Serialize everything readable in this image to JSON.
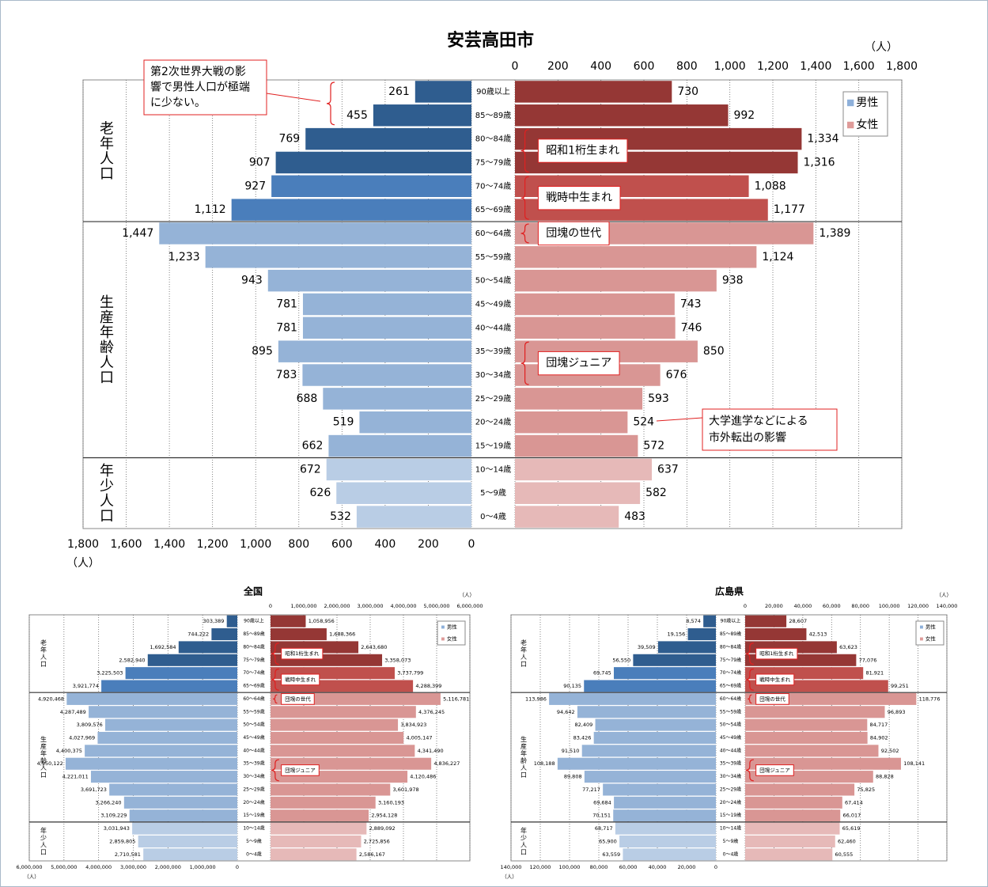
{
  "chart_data": [
    {
      "type": "pyramid",
      "title": "安芸高田市",
      "unit": "（人）",
      "categories": [
        "90歳以上",
        "85〜89歳",
        "80〜84歳",
        "75〜79歳",
        "70〜74歳",
        "65〜69歳",
        "60〜64歳",
        "55〜59歳",
        "50〜54歳",
        "45〜49歳",
        "40〜44歳",
        "35〜39歳",
        "30〜34歳",
        "25〜29歳",
        "20〜24歳",
        "15〜19歳",
        "10〜14歳",
        "5〜9歳",
        "0〜4歳"
      ],
      "series": [
        {
          "name": "男性",
          "color": "#8eb0da",
          "colors": [
            "#2f5d8f",
            "#2f5d8f",
            "#2f5d8f",
            "#2f5d8f",
            "#4a7ebb",
            "#4a7ebb",
            "#95b3d7",
            "#95b3d7",
            "#95b3d7",
            "#95b3d7",
            "#95b3d7",
            "#95b3d7",
            "#95b3d7",
            "#95b3d7",
            "#95b3d7",
            "#95b3d7",
            "#b9cde5",
            "#b9cde5",
            "#b9cde5"
          ],
          "values": [
            261,
            455,
            769,
            907,
            927,
            1112,
            1447,
            1233,
            943,
            781,
            781,
            895,
            783,
            688,
            519,
            662,
            672,
            626,
            532
          ],
          "value_labels": [
            "261",
            "455",
            "769",
            "907",
            "927",
            "1,112",
            "1,447",
            "1,233",
            "943",
            "781",
            "781",
            "895",
            "783",
            "688",
            "519",
            "662",
            "672",
            "626",
            "532"
          ]
        },
        {
          "name": "女性",
          "color": "#df9b99",
          "colors": [
            "#953735",
            "#953735",
            "#953735",
            "#953735",
            "#c0504d",
            "#c0504d",
            "#d99694",
            "#d99694",
            "#d99694",
            "#d99694",
            "#d99694",
            "#d99694",
            "#d99694",
            "#d99694",
            "#d99694",
            "#d99694",
            "#e6b9b8",
            "#e6b9b8",
            "#e6b9b8"
          ],
          "values": [
            730,
            992,
            1334,
            1316,
            1088,
            1177,
            1389,
            1124,
            938,
            743,
            746,
            850,
            676,
            593,
            524,
            572,
            637,
            582,
            483
          ],
          "value_labels": [
            "730",
            "992",
            "1,334",
            "1,316",
            "1,088",
            "1,177",
            "1,389",
            "1,124",
            "938",
            "743",
            "746",
            "850",
            "676",
            "593",
            "524",
            "572",
            "637",
            "582",
            "483"
          ]
        }
      ],
      "xlim": [
        0,
        1800
      ],
      "xticks": [
        0,
        200,
        400,
        600,
        800,
        {
          "value": 1000,
          "label": "1,000"
        },
        {
          "value": 1200,
          "label": "1,200"
        },
        {
          "value": 1400,
          "label": "1,400"
        },
        {
          "value": 1600,
          "label": "1,600"
        },
        {
          "value": 1800,
          "label": "1,800"
        }
      ],
      "grid": true,
      "legend": "upper right",
      "groups": [
        {
          "label": "老年人口",
          "until": "65〜69歳"
        },
        {
          "label": "生産年齢人口",
          "until": "15〜19歳"
        },
        {
          "label": "年少人口",
          "until": "0〜4歳"
        }
      ],
      "annotations": [
        {
          "text": [
            "第2次世界大戦の影",
            "響で男性人口が極端",
            "に少ない。"
          ],
          "rows": [
            "90歳以上",
            "85〜89歳"
          ]
        },
        {
          "text": "昭和1桁生まれ",
          "rows": [
            "80〜84歳",
            "75〜79歳"
          ]
        },
        {
          "text": "戦時中生まれ",
          "rows": [
            "70〜74歳",
            "65〜69歳"
          ]
        },
        {
          "text": "団塊の世代",
          "rows": [
            "60〜64歳"
          ]
        },
        {
          "text": "団塊ジュニア",
          "rows": [
            "35〜39歳",
            "30〜34歳"
          ]
        },
        {
          "text": [
            "大学進学などによる",
            "市外転出の影響"
          ],
          "rows": [
            "20〜24歳"
          ]
        }
      ]
    },
    {
      "type": "pyramid",
      "title": "全国",
      "unit": "（人）",
      "categories": [
        "90歳以上",
        "85〜89歳",
        "80〜84歳",
        "75〜79歳",
        "70〜74歳",
        "65〜69歳",
        "60〜64歳",
        "55〜59歳",
        "50〜54歳",
        "45〜49歳",
        "40〜44歳",
        "35〜39歳",
        "30〜34歳",
        "25〜29歳",
        "20〜24歳",
        "15〜19歳",
        "10〜14歳",
        "5〜9歳",
        "0〜4歳"
      ],
      "series": [
        {
          "name": "男性",
          "color": "#8eb0da",
          "colors": [
            "#2f5d8f",
            "#2f5d8f",
            "#2f5d8f",
            "#2f5d8f",
            "#4a7ebb",
            "#4a7ebb",
            "#95b3d7",
            "#95b3d7",
            "#95b3d7",
            "#95b3d7",
            "#95b3d7",
            "#95b3d7",
            "#95b3d7",
            "#95b3d7",
            "#95b3d7",
            "#95b3d7",
            "#b9cde5",
            "#b9cde5",
            "#b9cde5"
          ],
          "values": [
            303389,
            744222,
            1692584,
            2582940,
            3225503,
            3921774,
            4920468,
            4287489,
            3809576,
            4027969,
            4400375,
            4950122,
            4221011,
            3691723,
            3266240,
            3109229,
            3031943,
            2859805,
            2710581
          ],
          "value_labels": [
            "303,389",
            "744,222",
            "1,692,584",
            "2,582,940",
            "3,225,503",
            "3,921,774",
            "4,920,468",
            "4,287,489",
            "3,809,576",
            "4,027,969",
            "4,400,375",
            "4,950,122",
            "4,221,011",
            "3,691,723",
            "3,266,240",
            "3,109,229",
            "3,031,943",
            "2,859,805",
            "2,710,581"
          ]
        },
        {
          "name": "女性",
          "color": "#df9b99",
          "colors": [
            "#953735",
            "#953735",
            "#953735",
            "#953735",
            "#c0504d",
            "#c0504d",
            "#d99694",
            "#d99694",
            "#d99694",
            "#d99694",
            "#d99694",
            "#d99694",
            "#d99694",
            "#d99694",
            "#d99694",
            "#d99694",
            "#e6b9b8",
            "#e6b9b8",
            "#e6b9b8"
          ],
          "values": [
            1058956,
            1688366,
            2643680,
            3358073,
            3737799,
            4288399,
            5116781,
            4376245,
            3834923,
            4005147,
            4341490,
            4836227,
            4120486,
            3601978,
            3160193,
            2954128,
            2889092,
            2725856,
            2586167
          ],
          "value_labels": [
            "1,058,956",
            "1,688,366",
            "2,643,680",
            "3,358,073",
            "3,737,799",
            "4,288,399",
            "5,116,781",
            "4,376,245",
            "3,834,923",
            "4,005,147",
            "4,341,490",
            "4,836,227",
            "4,120,486",
            "3,601,978",
            "3,160,193",
            "2,954,128",
            "2,889,092",
            "2,725,856",
            "2,586,167"
          ]
        }
      ],
      "xlim": [
        0,
        6000000
      ],
      "xticks": [
        0,
        {
          "value": 1000000,
          "label": "1,000,000"
        },
        {
          "value": 2000000,
          "label": "2,000,000"
        },
        {
          "value": 3000000,
          "label": "3,000,000"
        },
        {
          "value": 4000000,
          "label": "4,000,000"
        },
        {
          "value": 5000000,
          "label": "5,000,000"
        },
        {
          "value": 6000000,
          "label": "6,000,000"
        }
      ],
      "grid": true,
      "legend": "upper right",
      "groups": [
        {
          "label": "老年人口",
          "until": "65〜69歳"
        },
        {
          "label": "生産年齢人口",
          "until": "15〜19歳"
        },
        {
          "label": "年少人口",
          "until": "0〜4歳"
        }
      ],
      "annotations": [
        {
          "text": "昭和1桁生まれ",
          "rows": [
            "80〜84歳",
            "75〜79歳"
          ]
        },
        {
          "text": "戦時中生まれ",
          "rows": [
            "70〜74歳",
            "65〜69歳"
          ]
        },
        {
          "text": "団塊の世代",
          "rows": [
            "60〜64歳"
          ]
        },
        {
          "text": "団塊ジュニア",
          "rows": [
            "35〜39歳",
            "30〜34歳"
          ]
        }
      ]
    },
    {
      "type": "pyramid",
      "title": "広島県",
      "unit": "（人）",
      "categories": [
        "90歳以上",
        "85〜89歳",
        "80〜84歳",
        "75〜79歳",
        "70〜74歳",
        "65〜69歳",
        "60〜64歳",
        "55〜59歳",
        "50〜54歳",
        "45〜49歳",
        "40〜44歳",
        "35〜39歳",
        "30〜34歳",
        "25〜29歳",
        "20〜24歳",
        "15〜19歳",
        "10〜14歳",
        "5〜9歳",
        "0〜4歳"
      ],
      "series": [
        {
          "name": "男性",
          "color": "#8eb0da",
          "colors": [
            "#2f5d8f",
            "#2f5d8f",
            "#2f5d8f",
            "#2f5d8f",
            "#4a7ebb",
            "#4a7ebb",
            "#95b3d7",
            "#95b3d7",
            "#95b3d7",
            "#95b3d7",
            "#95b3d7",
            "#95b3d7",
            "#95b3d7",
            "#95b3d7",
            "#95b3d7",
            "#95b3d7",
            "#b9cde5",
            "#b9cde5",
            "#b9cde5"
          ],
          "values": [
            8574,
            19156,
            39509,
            56550,
            69745,
            90135,
            113986,
            94642,
            82409,
            83426,
            91510,
            108188,
            89808,
            77217,
            69684,
            70151,
            68717,
            65900,
            63559
          ],
          "value_labels": [
            "8,574",
            "19,156",
            "39,509",
            "56,550",
            "69,745",
            "90,135",
            "113,986",
            "94,642",
            "82,409",
            "83,426",
            "91,510",
            "108,188",
            "89,808",
            "77,217",
            "69,684",
            "70,151",
            "68,717",
            "65,900",
            "63,559"
          ]
        },
        {
          "name": "女性",
          "color": "#df9b99",
          "colors": [
            "#953735",
            "#953735",
            "#953735",
            "#953735",
            "#c0504d",
            "#c0504d",
            "#d99694",
            "#d99694",
            "#d99694",
            "#d99694",
            "#d99694",
            "#d99694",
            "#d99694",
            "#d99694",
            "#d99694",
            "#d99694",
            "#e6b9b8",
            "#e6b9b8",
            "#e6b9b8"
          ],
          "values": [
            28607,
            42513,
            63623,
            77076,
            81921,
            99251,
            118776,
            96893,
            84717,
            84902,
            92502,
            108141,
            88828,
            75825,
            67414,
            66017,
            65619,
            62460,
            60555
          ],
          "value_labels": [
            "28,607",
            "42,513",
            "63,623",
            "77,076",
            "81,921",
            "99,251",
            "118,776",
            "96,893",
            "84,717",
            "84,902",
            "92,502",
            "108,141",
            "88,828",
            "75,825",
            "67,414",
            "66,017",
            "65,619",
            "62,460",
            "60,555"
          ]
        }
      ],
      "xlim": [
        0,
        140000
      ],
      "xticks": [
        0,
        {
          "value": 20000,
          "label": "20,000"
        },
        {
          "value": 40000,
          "label": "40,000"
        },
        {
          "value": 60000,
          "label": "60,000"
        },
        {
          "value": 80000,
          "label": "80,000"
        },
        {
          "value": 100000,
          "label": "100,000"
        },
        {
          "value": 120000,
          "label": "120,000"
        },
        {
          "value": 140000,
          "label": "140,000"
        }
      ],
      "grid": true,
      "legend": "upper right",
      "groups": [
        {
          "label": "老年人口",
          "until": "65〜69歳"
        },
        {
          "label": "生産年齢人口",
          "until": "15〜19歳"
        },
        {
          "label": "年少人口",
          "until": "0〜4歳"
        }
      ],
      "annotations": [
        {
          "text": "昭和1桁生まれ",
          "rows": [
            "80〜84歳",
            "75〜79歳"
          ]
        },
        {
          "text": "戦時中生まれ",
          "rows": [
            "70〜74歳",
            "65〜69歳"
          ]
        },
        {
          "text": "団塊の世代",
          "rows": [
            "60〜64歳"
          ]
        },
        {
          "text": "団塊ジュニア",
          "rows": [
            "35〜39歳",
            "30〜34歳"
          ]
        }
      ]
    }
  ]
}
